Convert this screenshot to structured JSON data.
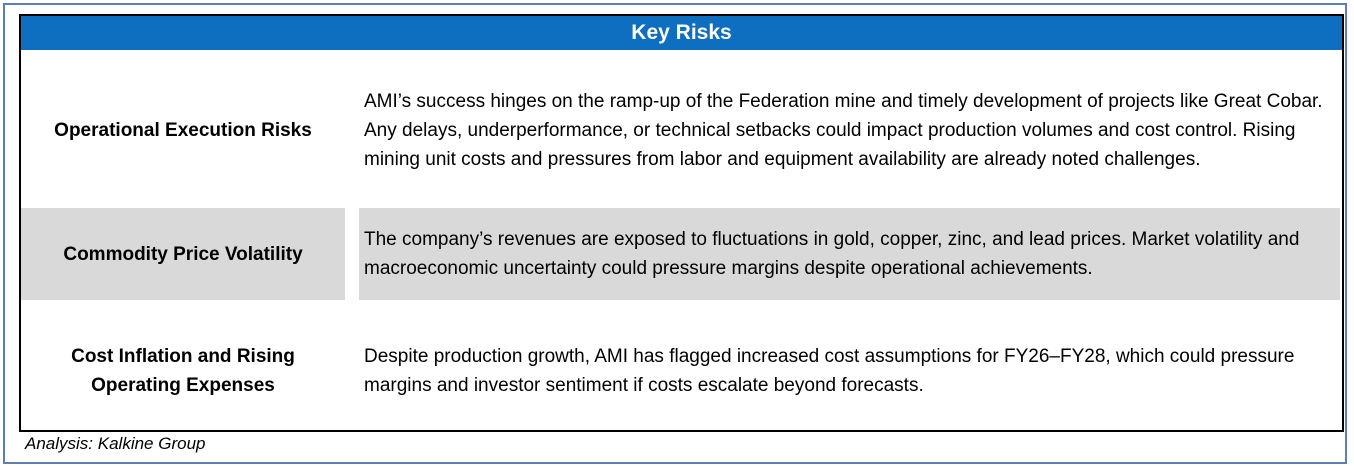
{
  "table": {
    "title": "Key Risks",
    "rows": [
      {
        "label": "Operational Execution Risks",
        "description": "AMI’s success hinges on the ramp-up of the Federation mine and timely development of projects like Great Cobar. Any delays, underperformance, or technical setbacks could impact production volumes and cost control. Rising mining unit costs and pressures from labor and equipment availability are already noted challenges."
      },
      {
        "label": "Commodity Price Volatility",
        "description": "The company’s revenues are exposed to fluctuations in gold, copper, zinc, and lead prices. Market volatility and macroeconomic uncertainty could pressure margins despite operational achievements."
      },
      {
        "label": "Cost Inflation and Rising Operating Expenses",
        "description": "Despite production growth, AMI has flagged increased cost assumptions for FY26–FY28, which could pressure margins and investor sentiment if costs escalate beyond forecasts."
      }
    ]
  },
  "footnote": "Analysis: Kalkine Group",
  "colors": {
    "header_bg": "#0e6fc1",
    "shaded_row": "#d9d9d9",
    "frame_border": "#5b7fb3"
  }
}
